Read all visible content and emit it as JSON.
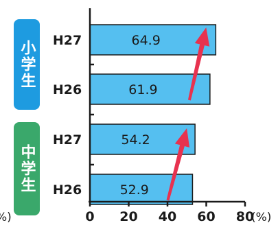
{
  "chart_data": {
    "type": "bar",
    "orientation": "horizontal",
    "groups": [
      {
        "label": "小学生",
        "color": "#1e9be0",
        "rows": [
          {
            "category": "H27",
            "value": 64.9
          },
          {
            "category": "H26",
            "value": 61.9
          }
        ]
      },
      {
        "label": "中学生",
        "color": "#3aa86b",
        "rows": [
          {
            "category": "H27",
            "value": 54.2
          },
          {
            "category": "H26",
            "value": 52.9
          }
        ]
      }
    ],
    "x_ticks": [
      "0",
      "20",
      "40",
      "60",
      "80"
    ],
    "x_unit": "(%)",
    "left_cut_label": "%)",
    "xlim": [
      0,
      80
    ],
    "bar_color": "#55bff0",
    "bar_stroke": "#1a1a1a",
    "arrow_color": "#e8324f",
    "grid": false
  }
}
